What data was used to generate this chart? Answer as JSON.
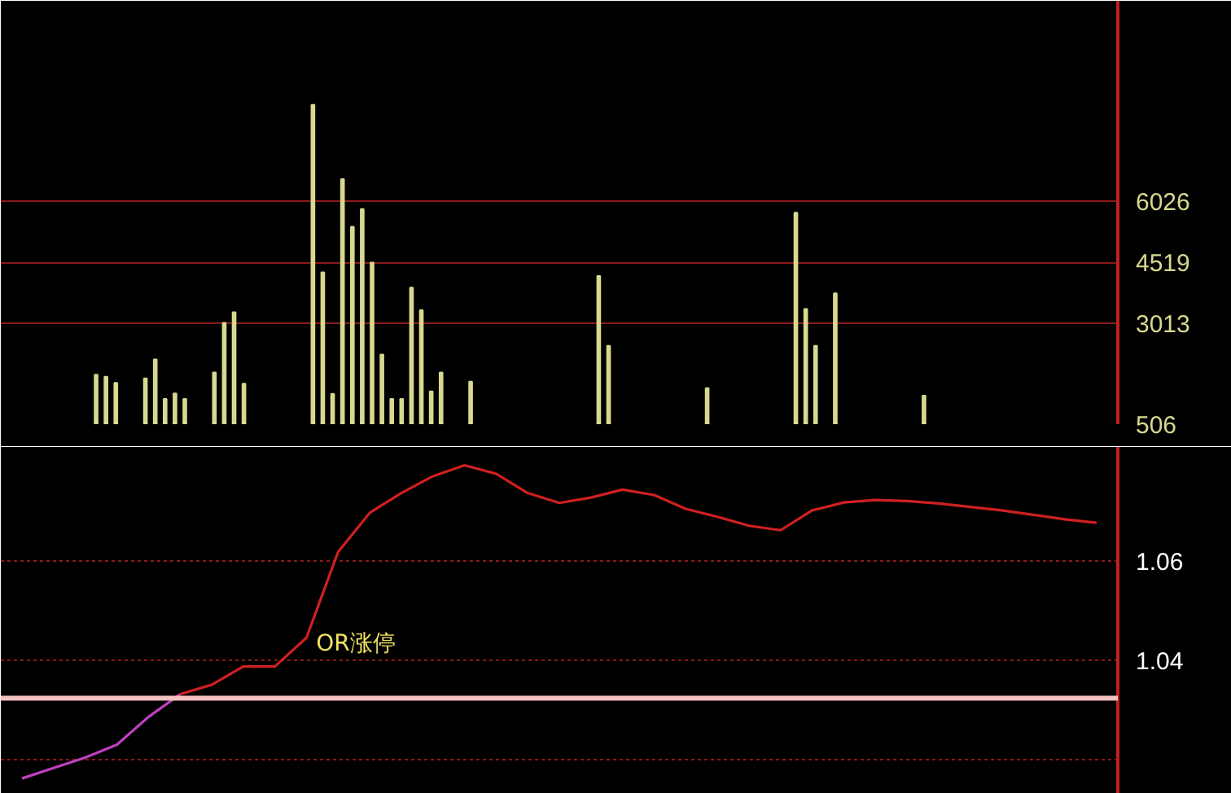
{
  "chart_data": [
    {
      "type": "bar",
      "categories": [
        null,
        null,
        null,
        null,
        null,
        null,
        null,
        null,
        null,
        null,
        null,
        null,
        null,
        null,
        null,
        null,
        null,
        null,
        null,
        null,
        null,
        null,
        null,
        null,
        null,
        null,
        null,
        null,
        null,
        null,
        null,
        null,
        null,
        null,
        null,
        null,
        null,
        null,
        null,
        null,
        null,
        null,
        null,
        null,
        null,
        null,
        null,
        null,
        null,
        null,
        null,
        null,
        null,
        null,
        null,
        null,
        null,
        null,
        null,
        null,
        null,
        null,
        null,
        null,
        null,
        null,
        null,
        null,
        null,
        null,
        null,
        null,
        null,
        null,
        null,
        null,
        null,
        null,
        null,
        null,
        null,
        null,
        null,
        null,
        null,
        null,
        null,
        null,
        null,
        null,
        null,
        null,
        null,
        null,
        null,
        null,
        null,
        null,
        null,
        null,
        null,
        null,
        null,
        null,
        null,
        null,
        null,
        null,
        null,
        null,
        null,
        null,
        null
      ],
      "values": [
        null,
        null,
        null,
        null,
        null,
        null,
        null,
        null,
        null,
        1730,
        1680,
        1530,
        null,
        null,
        1640,
        2110,
        1130,
        1270,
        1130,
        null,
        null,
        1790,
        3020,
        3280,
        1510,
        null,
        null,
        null,
        null,
        null,
        null,
        8420,
        4270,
        1260,
        6580,
        5400,
        5840,
        4510,
        2230,
        1130,
        1130,
        3890,
        3330,
        1320,
        1790,
        null,
        null,
        1560,
        null,
        null,
        null,
        null,
        null,
        null,
        null,
        null,
        null,
        null,
        null,
        null,
        4180,
        2450,
        null,
        null,
        null,
        null,
        null,
        null,
        null,
        null,
        null,
        1400,
        null,
        null,
        null,
        null,
        null,
        null,
        null,
        null,
        5750,
        3360,
        2450,
        null,
        3750,
        null,
        null,
        null,
        null,
        null,
        null,
        null,
        null,
        1210,
        null,
        null,
        null,
        null,
        null,
        null,
        null,
        null,
        null,
        null,
        null,
        null,
        null,
        null,
        null,
        null,
        null,
        null,
        null
      ],
      "color": "#d8d890",
      "ylim": [
        506,
        11000
      ],
      "yticks": [
        506,
        3013,
        4519,
        6026
      ],
      "grid": "y"
    },
    {
      "type": "line",
      "categories": [
        null,
        null,
        null,
        null,
        null,
        null,
        null,
        null,
        null,
        null,
        null,
        null,
        null,
        null,
        null,
        null,
        null,
        null,
        null,
        null,
        null,
        null,
        null,
        null,
        null,
        null,
        null,
        null,
        null,
        null,
        null,
        null,
        null,
        null,
        null
      ],
      "series": [
        {
          "color": "#c040c0",
          "values": [
            1.0161,
            1.0182,
            1.0203,
            1.0229,
            1.0285,
            1.0331,
            null,
            null,
            null,
            null,
            null,
            null,
            null,
            null,
            null,
            null,
            null,
            null,
            null,
            null,
            null,
            null,
            null,
            null,
            null,
            null,
            null,
            null,
            null,
            null,
            null,
            null,
            null,
            null,
            null
          ]
        },
        {
          "color": "#d02020",
          "values": [
            null,
            null,
            null,
            null,
            null,
            1.0331,
            1.035,
            1.0387,
            1.0387,
            1.0445,
            1.0618,
            1.0697,
            1.0737,
            1.0771,
            1.0793,
            1.0776,
            1.0737,
            1.0717,
            1.0728,
            1.0744,
            1.0733,
            1.0705,
            1.0689,
            1.0671,
            1.0662,
            1.0702,
            1.0718,
            1.0723,
            1.0721,
            1.0716,
            1.0709,
            1.0702,
            1.0693,
            1.0684,
            1.0677
          ]
        }
      ],
      "ylim": [
        1.013,
        1.083
      ],
      "yticks": [
        {
          "value": 1.02,
          "label": null
        },
        1.04,
        1.06
      ],
      "grid": "y",
      "line_style": "solid",
      "ref_lines": [
        {
          "axis": "y",
          "value": 1.0323,
          "color": "#f4c0c0"
        }
      ],
      "annotations": [
        "OR涨停"
      ]
    }
  ]
}
